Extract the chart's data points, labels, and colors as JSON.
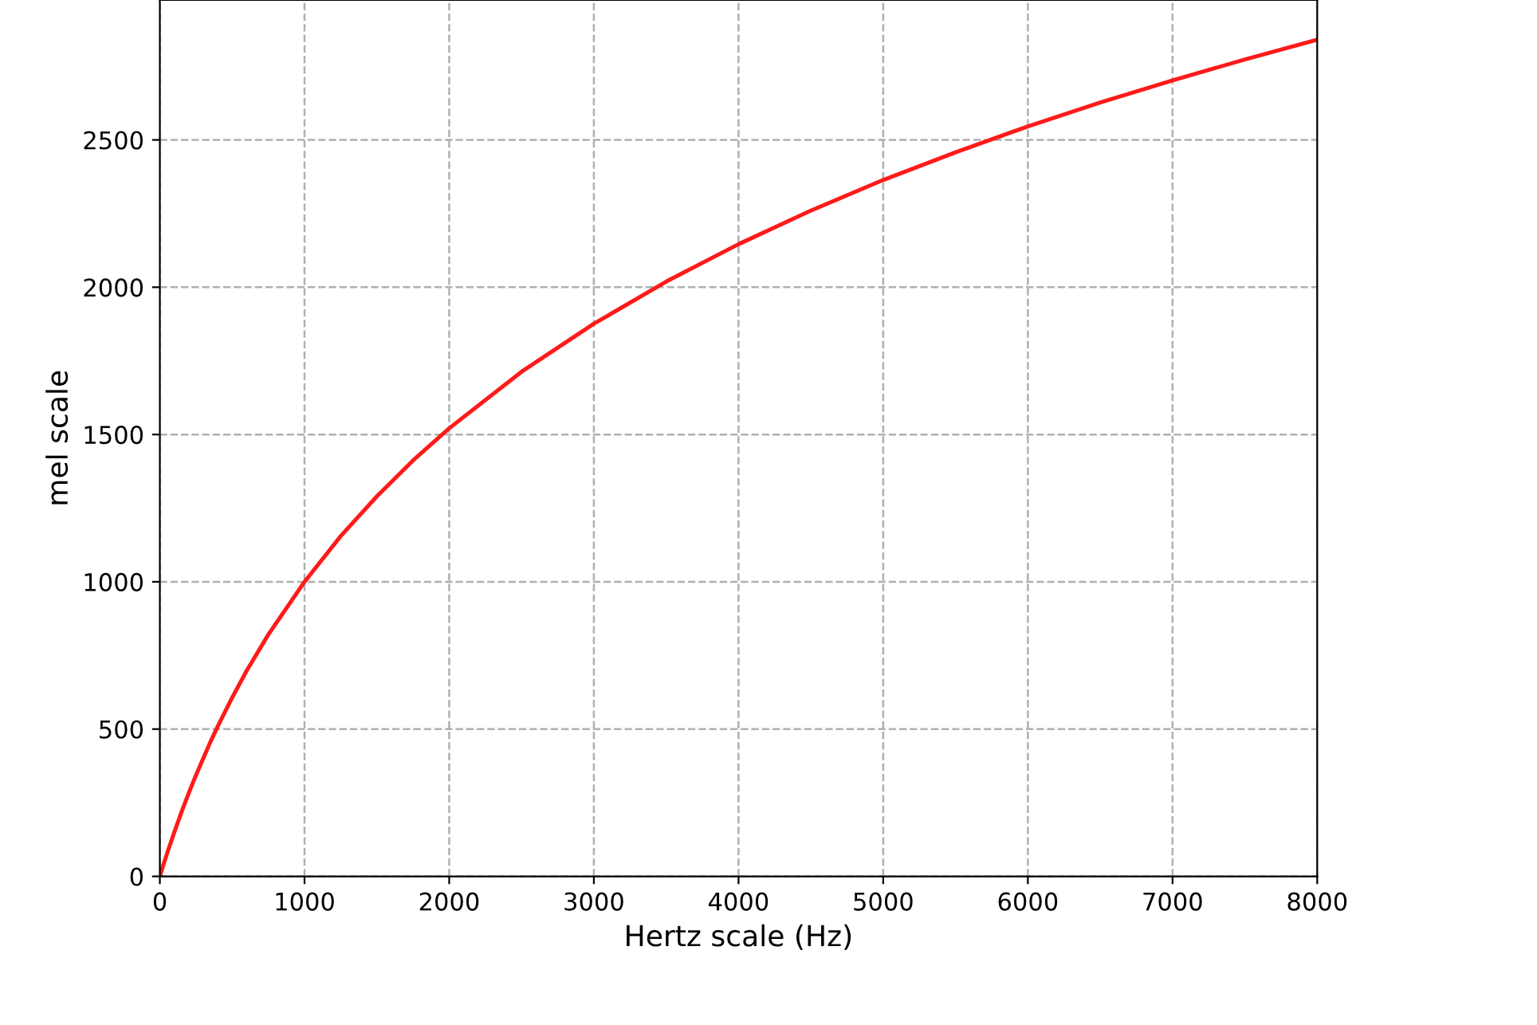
{
  "chart_data": {
    "type": "line",
    "xlabel": "Hertz scale (Hz)",
    "ylabel": "mel scale",
    "x": [
      0,
      25,
      50,
      100,
      150,
      200,
      250,
      350,
      400,
      500,
      600,
      750,
      1000,
      1250,
      1500,
      1750,
      2000,
      2500,
      3000,
      3500,
      4000,
      4500,
      5000,
      5500,
      6000,
      6500,
      7000,
      7500,
      8000
    ],
    "series": [
      {
        "color": "#ff1a1a",
        "values": [
          0,
          40,
          78,
          150,
          219,
          283,
          344,
          457,
          509,
          607,
          698,
          821,
          1000,
          1155,
          1290,
          1412,
          1521,
          1713,
          1876,
          2019,
          2146,
          2260,
          2364,
          2458,
          2546,
          2627,
          2702,
          2773,
          2840
        ]
      }
    ],
    "xlim": [
      0,
      8000
    ],
    "ylim": [
      0,
      2975
    ],
    "xticks": [
      0,
      1000,
      2000,
      3000,
      4000,
      5000,
      6000,
      7000,
      8000
    ],
    "yticks": [
      0,
      500,
      1000,
      1500,
      2000,
      2500
    ],
    "grid": true,
    "line_style": "solid"
  }
}
